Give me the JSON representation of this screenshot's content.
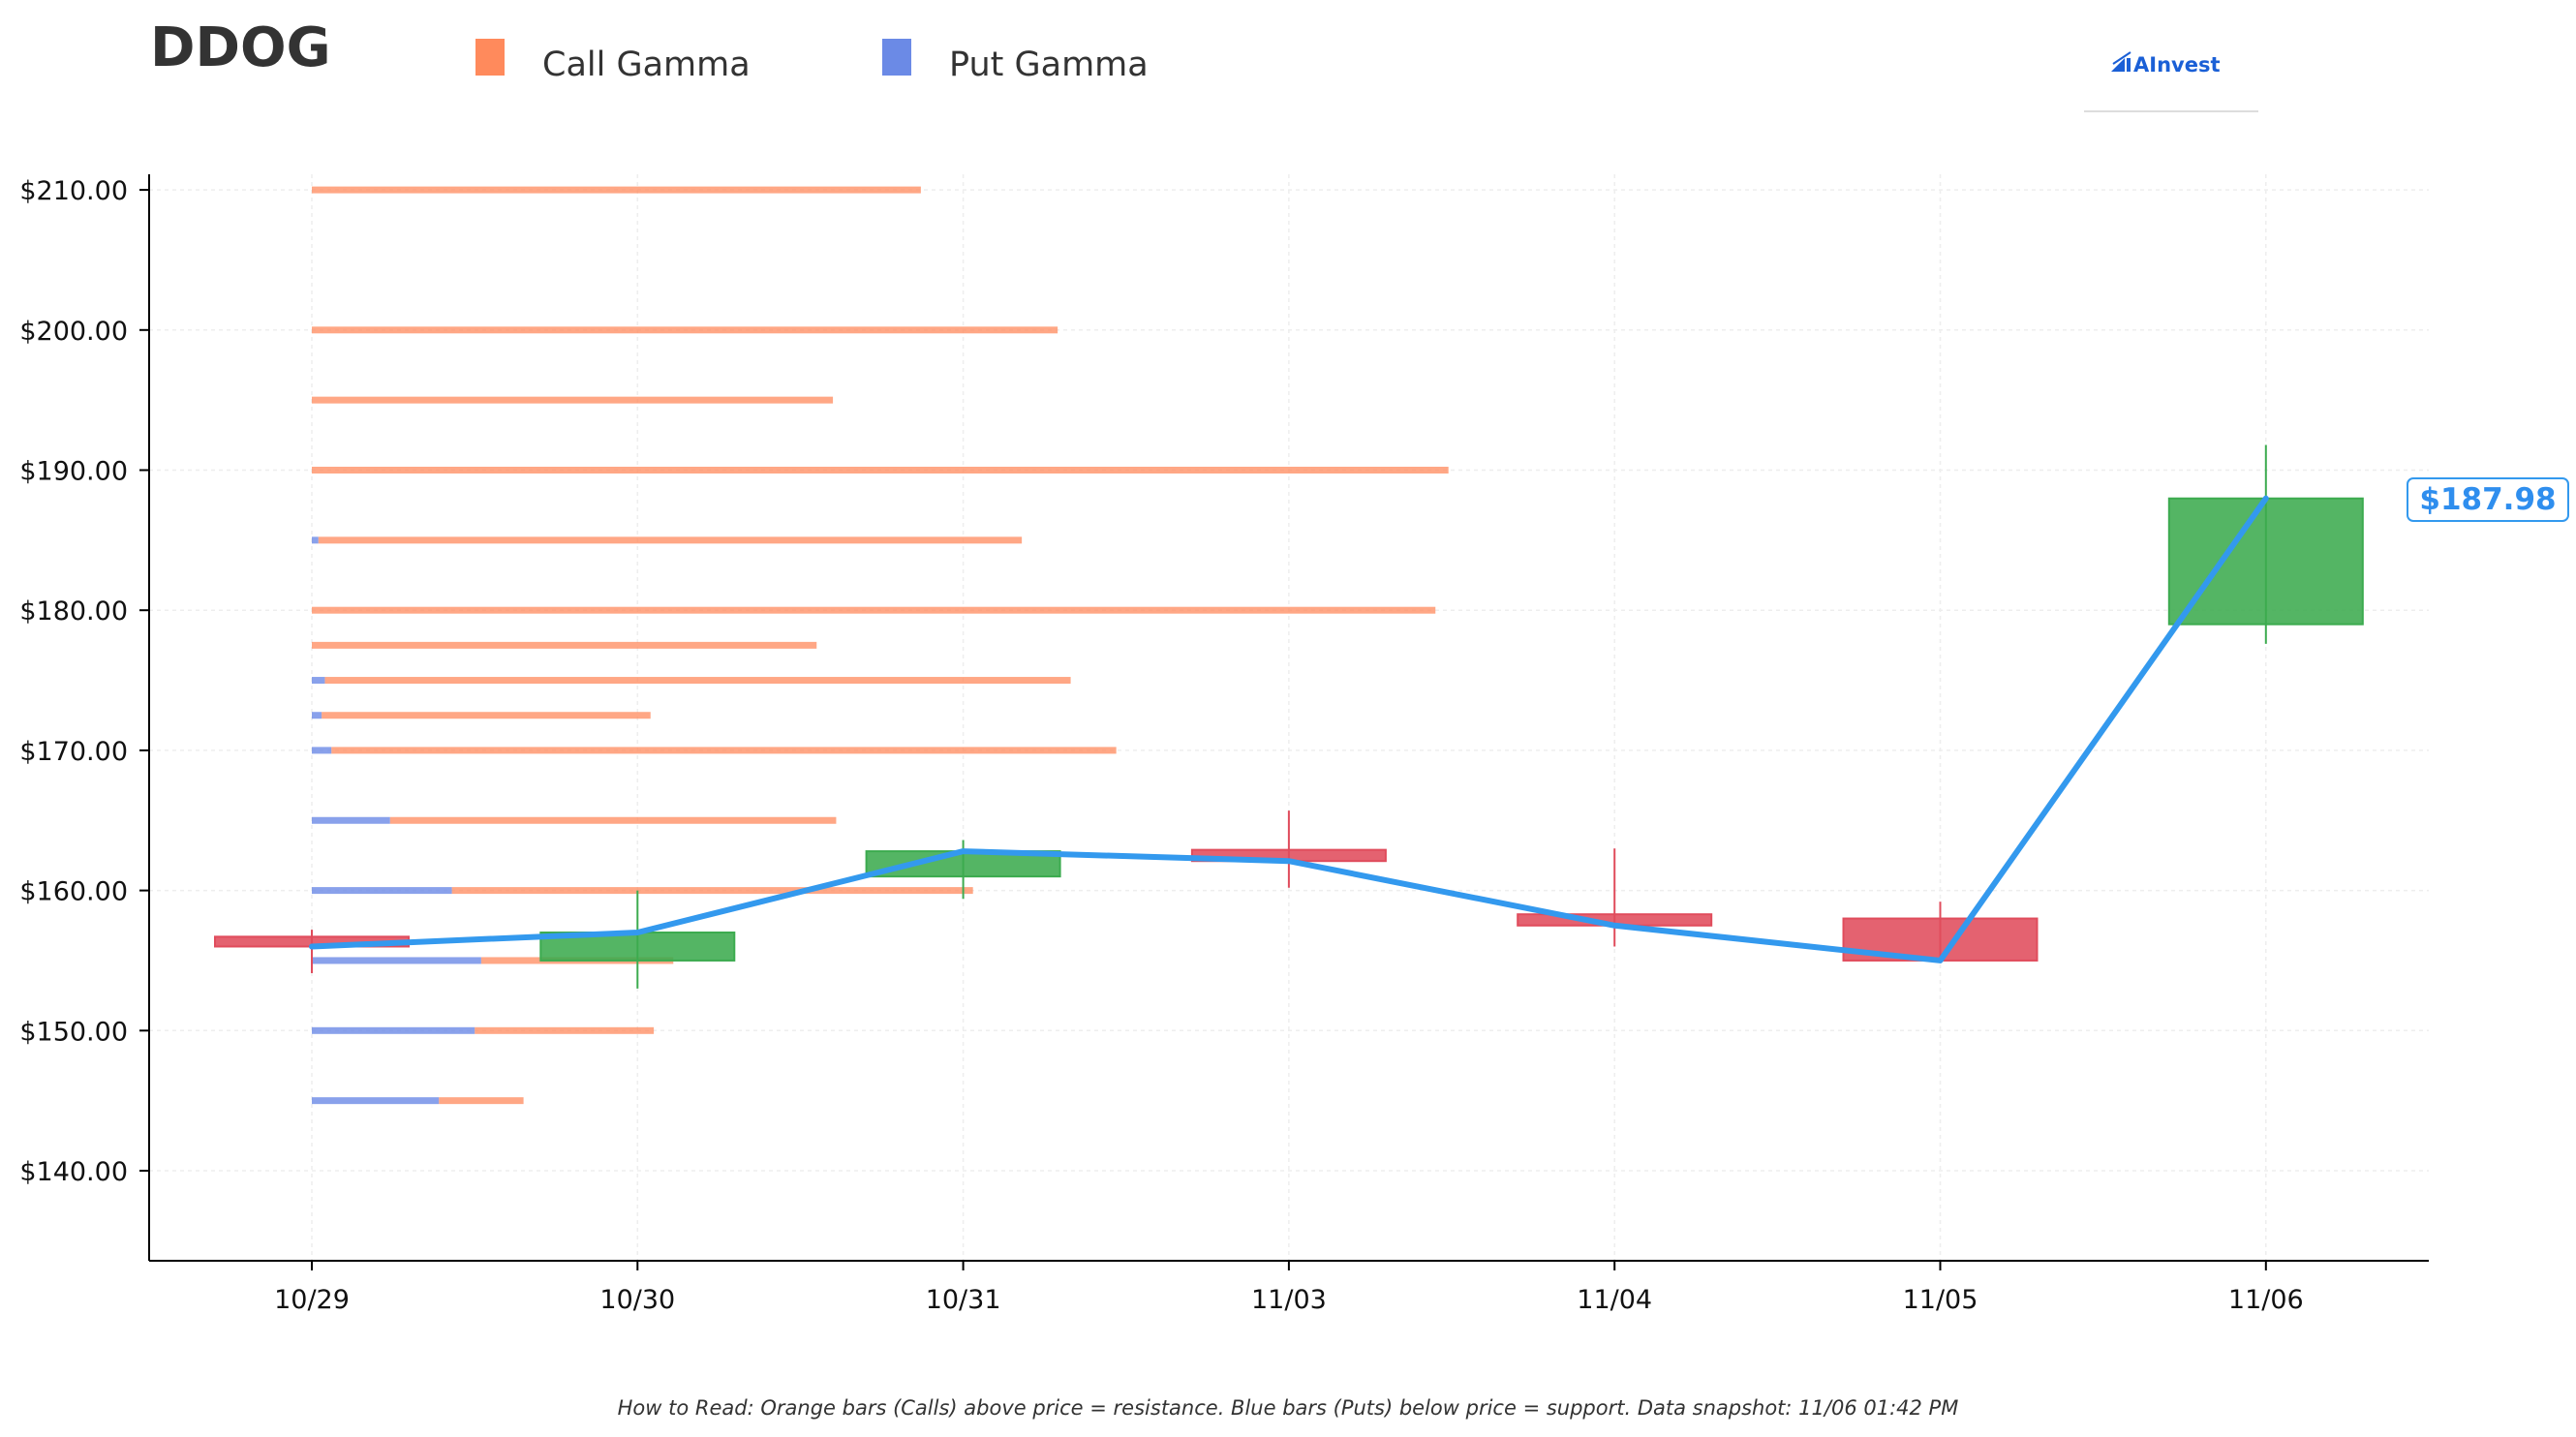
{
  "header": {
    "ticker": "DDOG",
    "logo_text": "AInvest"
  },
  "legend": [
    {
      "label": "Call Gamma",
      "color": "#ff8a5c"
    },
    {
      "label": "Put Gamma",
      "color": "#6b8ae6"
    }
  ],
  "footnote": "How to Read: Orange bars (Calls) above price = resistance. Blue bars (Puts) below price = support. Data snapshot: 11/06 01:42 PM",
  "colors": {
    "up": "#3cab4f",
    "down": "#e04c5c",
    "price_line": "#3399ee",
    "call": "#ff8a5c",
    "put": "#6b8ae6"
  },
  "chart_data": {
    "type": "candlestick",
    "title": "DDOG",
    "categories": [
      "10/29",
      "10/30",
      "10/31",
      "11/03",
      "11/04",
      "11/05",
      "11/06"
    ],
    "ylim": [
      134,
      211
    ],
    "yticks": [
      140,
      150,
      160,
      170,
      180,
      190,
      200,
      210
    ],
    "ytick_labels": [
      "$140.00",
      "$150.00",
      "$160.00",
      "$170.00",
      "$180.00",
      "$190.00",
      "$200.00",
      "$210.00"
    ],
    "grid": true,
    "candles": [
      {
        "date": "10/29",
        "open": 156.7,
        "high": 157.2,
        "low": 154.1,
        "close": 156.0
      },
      {
        "date": "10/30",
        "open": 155.0,
        "high": 160.0,
        "low": 153.0,
        "close": 157.0
      },
      {
        "date": "10/31",
        "open": 161.0,
        "high": 163.6,
        "low": 159.4,
        "close": 162.8
      },
      {
        "date": "11/03",
        "open": 162.9,
        "high": 165.7,
        "low": 160.2,
        "close": 162.1
      },
      {
        "date": "11/04",
        "open": 158.3,
        "high": 163.0,
        "low": 156.0,
        "close": 157.5
      },
      {
        "date": "11/05",
        "open": 158.0,
        "high": 159.2,
        "low": 155.0,
        "close": 155.0
      },
      {
        "date": "11/06",
        "open": 179.0,
        "high": 191.8,
        "low": 177.6,
        "close": 187.98
      }
    ],
    "price_line": [
      156.0,
      157.0,
      162.8,
      162.1,
      157.5,
      155.0,
      187.98
    ],
    "current_price_label": "$187.98",
    "gamma_unit_x": "category index",
    "gamma_bars": [
      {
        "strike": 210,
        "put": 0.0,
        "call": 1.87
      },
      {
        "strike": 200,
        "put": 0.0,
        "call": 2.29
      },
      {
        "strike": 195,
        "put": 0.0,
        "call": 1.6
      },
      {
        "strike": 190,
        "put": 0.0,
        "call": 3.49
      },
      {
        "strike": 185,
        "put": 0.02,
        "call": 2.16
      },
      {
        "strike": 180,
        "put": 0.0,
        "call": 3.45
      },
      {
        "strike": 177.5,
        "put": 0.0,
        "call": 1.55
      },
      {
        "strike": 175,
        "put": 0.04,
        "call": 2.29
      },
      {
        "strike": 172.5,
        "put": 0.03,
        "call": 1.01
      },
      {
        "strike": 170,
        "put": 0.06,
        "call": 2.41
      },
      {
        "strike": 165,
        "put": 0.24,
        "call": 1.37
      },
      {
        "strike": 160,
        "put": 0.43,
        "call": 1.6
      },
      {
        "strike": 155,
        "put": 0.52,
        "call": 0.59
      },
      {
        "strike": 150,
        "put": 0.5,
        "call": 0.55
      },
      {
        "strike": 145,
        "put": 0.39,
        "call": 0.26
      }
    ]
  }
}
